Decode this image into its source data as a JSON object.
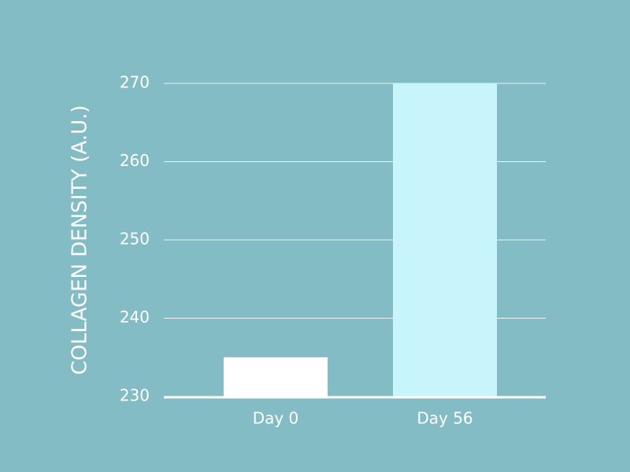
{
  "chart_data": {
    "type": "bar",
    "y_label": "COLLAGEN DENSITY (A.U.)",
    "categories": [
      "Day 0",
      "Day 56"
    ],
    "values": [
      235,
      270
    ],
    "colors": [
      "#ffffff",
      "#c8f4fb"
    ],
    "ylim": [
      230,
      270
    ],
    "yticks": [
      230,
      240,
      250,
      260,
      270
    ],
    "grid": true
  }
}
